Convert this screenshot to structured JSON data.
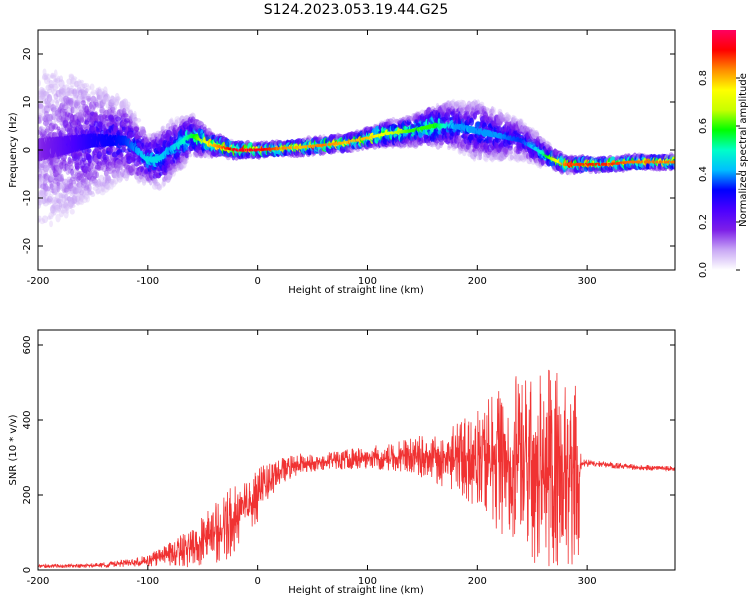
{
  "title": "S124.2023.053.19.44.G25",
  "colorbar": {
    "label": "Normalized spectral amplitude",
    "ticks": [
      "0.0",
      "0.2",
      "0.4",
      "0.6",
      "0.8"
    ],
    "tick_values": [
      0.0,
      0.2,
      0.4,
      0.6,
      0.8
    ],
    "range": [
      0,
      1
    ],
    "colormap": [
      "#ffffff",
      "#c9a8f5",
      "#7d1fe8",
      "#4b00ff",
      "#0000ff",
      "#00bfff",
      "#00ffc8",
      "#00ff00",
      "#c8ff00",
      "#ffff00",
      "#ff8c00",
      "#ff0000",
      "#ff0060"
    ]
  },
  "chart_data": [
    {
      "type": "heatmap",
      "name": "spectrogram",
      "xlabel": "Height of straight line (km)",
      "ylabel": "Frequency (Hz)",
      "xlim": [
        -200,
        380
      ],
      "ylim": [
        -25,
        25
      ],
      "xticks": [
        "-200",
        "-100",
        "0",
        "100",
        "200",
        "300"
      ],
      "xtick_values": [
        -200,
        -100,
        0,
        100,
        200,
        300
      ],
      "yticks": [
        "-20",
        "-10",
        "0",
        "10",
        "20"
      ],
      "ytick_values": [
        -20,
        -10,
        0,
        10,
        20
      ],
      "ridge": {
        "x": [
          -200,
          -150,
          -120,
          -100,
          -90,
          -80,
          -60,
          -40,
          -20,
          0,
          20,
          40,
          60,
          80,
          100,
          120,
          140,
          160,
          180,
          200,
          220,
          240,
          255,
          265,
          280,
          300,
          320,
          340,
          360,
          380
        ],
        "freq": [
          0,
          2,
          2,
          -2,
          -2,
          0,
          3,
          1,
          0,
          0,
          0.3,
          0.6,
          1,
          1.5,
          2.5,
          3.5,
          4,
          5,
          5,
          4,
          3,
          2,
          0,
          -1.5,
          -3,
          -3,
          -3,
          -2.5,
          -2.5,
          -2.5
        ],
        "amplitude": [
          0.15,
          0.3,
          0.35,
          0.45,
          0.45,
          0.4,
          0.55,
          0.8,
          0.95,
          0.95,
          0.85,
          0.8,
          0.85,
          0.8,
          0.8,
          0.7,
          0.6,
          0.6,
          0.4,
          0.4,
          0.4,
          0.35,
          0.45,
          0.6,
          0.85,
          0.9,
          0.9,
          0.85,
          0.85,
          0.85
        ],
        "spread_hz": [
          20,
          12,
          8,
          5,
          6,
          6,
          4,
          2,
          1.5,
          1.2,
          1.2,
          1.5,
          1.5,
          1.5,
          1.8,
          2.5,
          3,
          4,
          5,
          6,
          5,
          4,
          3,
          2,
          1.5,
          1.2,
          1.2,
          1.2,
          1.2,
          1.2
        ]
      }
    },
    {
      "type": "line",
      "name": "snr",
      "xlabel": "Height of straight line (km)",
      "ylabel": "SNR (10 * v/v)",
      "xlim": [
        -200,
        380
      ],
      "ylim": [
        0,
        640
      ],
      "xticks": [
        "-200",
        "-100",
        "0",
        "100",
        "200",
        "300"
      ],
      "xtick_values": [
        -200,
        -100,
        0,
        100,
        200,
        300
      ],
      "yticks": [
        "0",
        "200",
        "400",
        "600"
      ],
      "ytick_values": [
        0,
        200,
        400,
        600
      ],
      "color": "#f03232",
      "envelope": {
        "x": [
          -200,
          -150,
          -120,
          -100,
          -80,
          -60,
          -40,
          -20,
          0,
          20,
          40,
          60,
          80,
          100,
          120,
          140,
          160,
          180,
          200,
          220,
          240,
          260,
          280,
          292,
          295,
          300,
          320,
          340,
          360,
          380
        ],
        "mean": [
          10,
          12,
          18,
          25,
          40,
          60,
          90,
          140,
          200,
          265,
          285,
          290,
          295,
          300,
          300,
          305,
          300,
          300,
          300,
          290,
          290,
          275,
          260,
          250,
          285,
          285,
          280,
          275,
          272,
          270
        ],
        "amp": [
          4,
          5,
          8,
          12,
          30,
          45,
          70,
          80,
          60,
          30,
          22,
          20,
          22,
          25,
          30,
          40,
          60,
          80,
          110,
          160,
          200,
          230,
          220,
          200,
          10,
          8,
          7,
          7,
          6,
          6
        ]
      }
    }
  ]
}
